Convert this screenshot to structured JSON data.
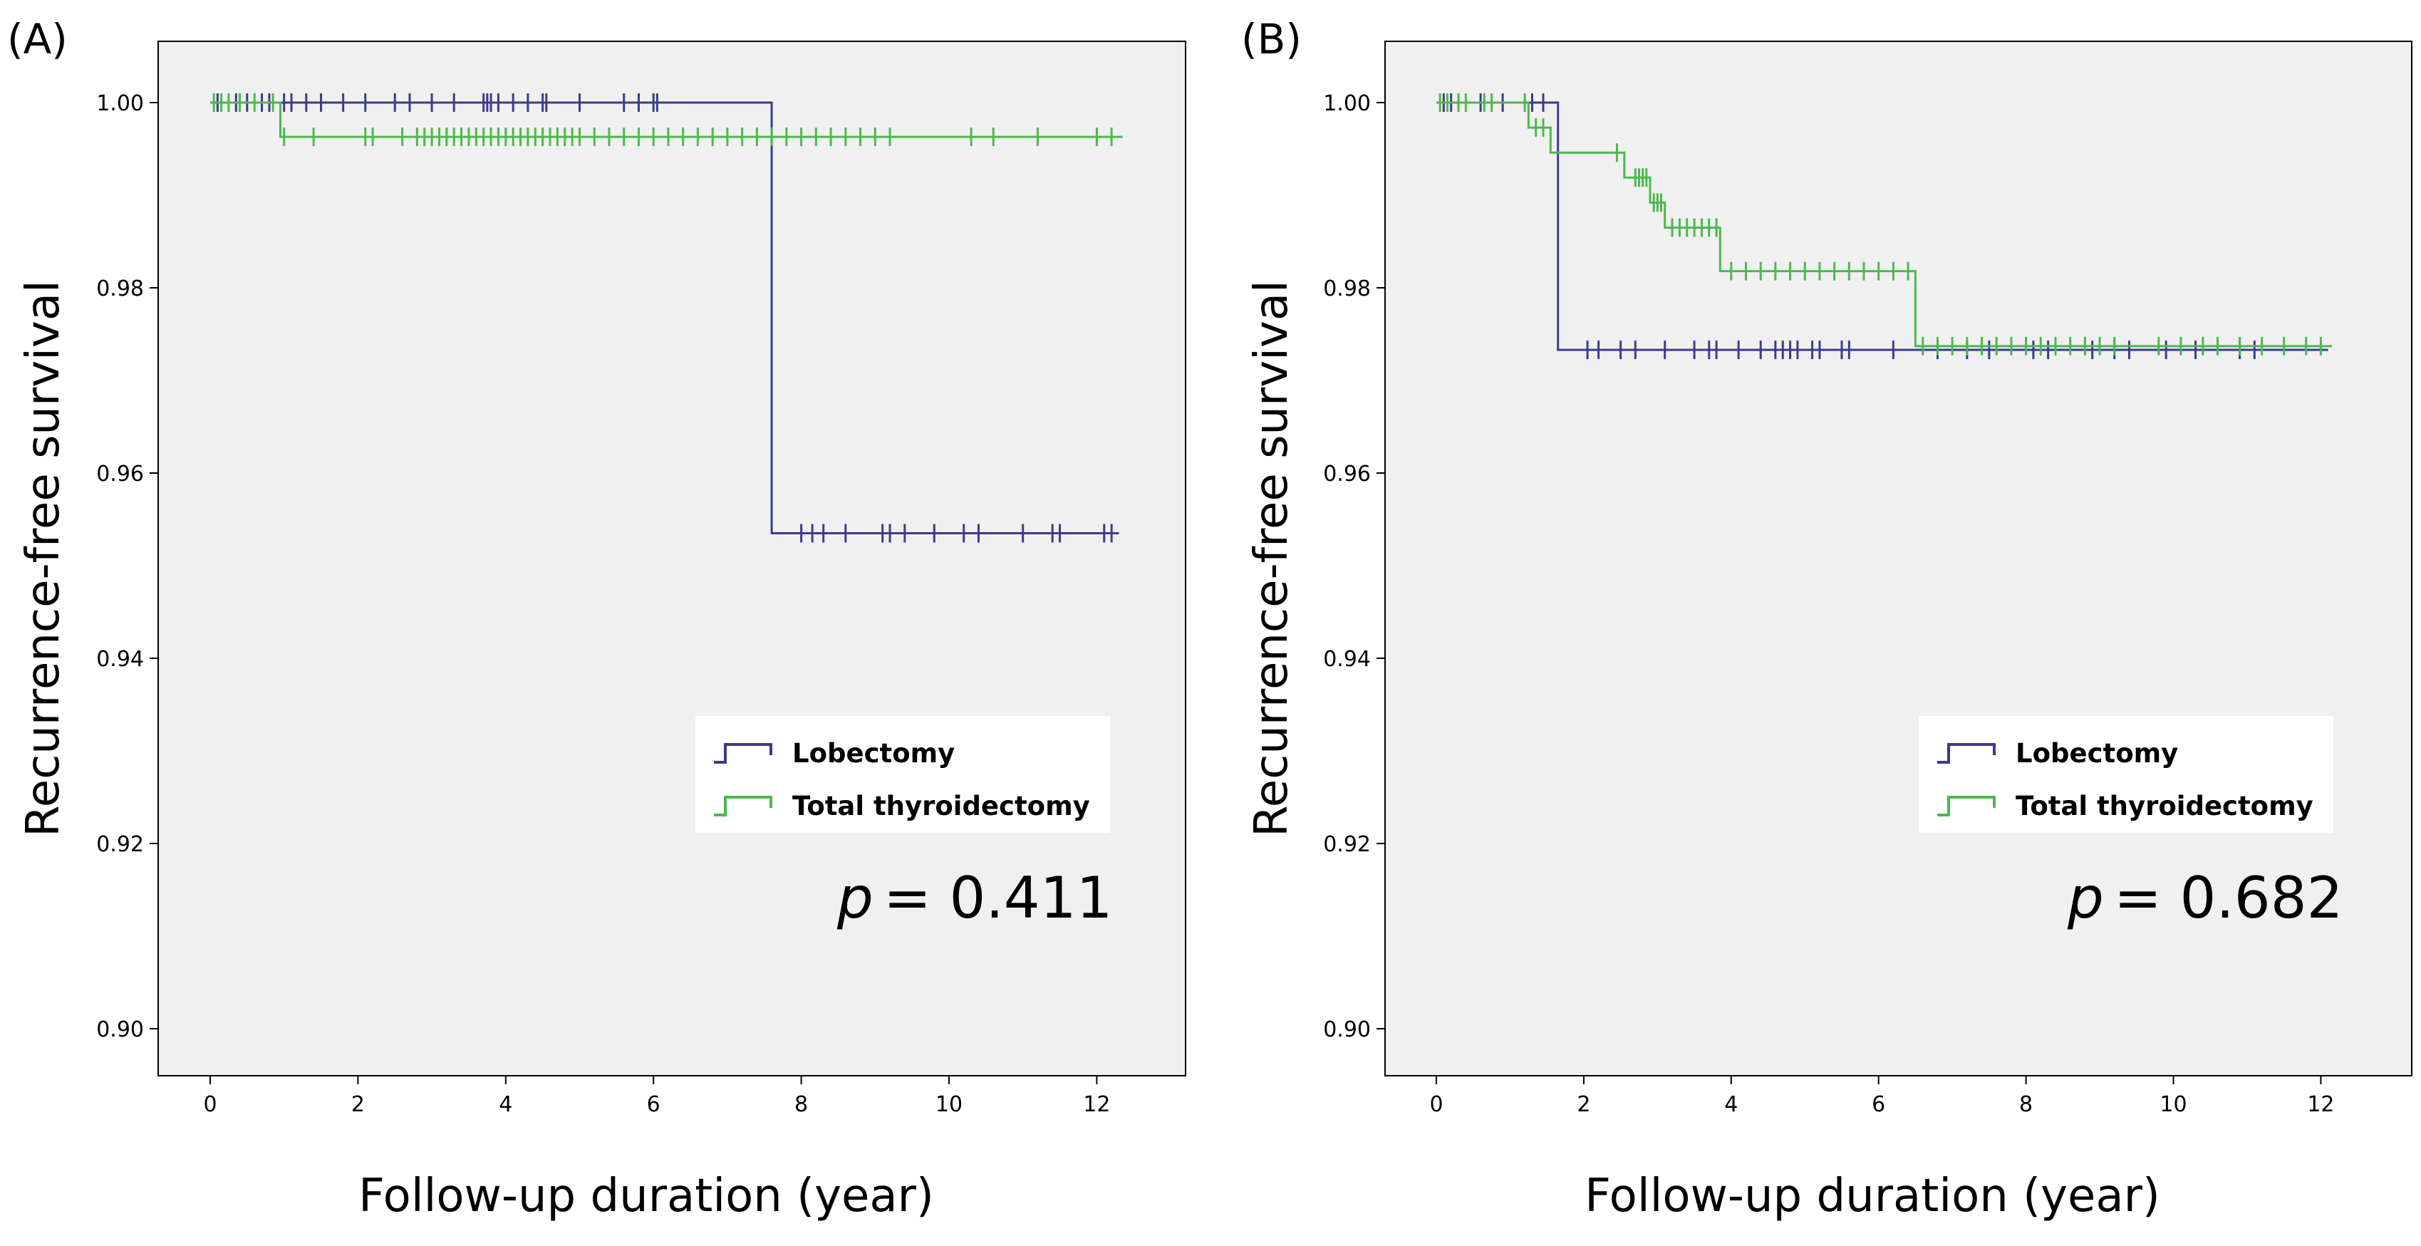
{
  "chart_data": [
    {
      "type": "line",
      "subtype": "kaplan-meier",
      "panel": "(A)",
      "xlabel": "Follow-up duration (year)",
      "ylabel": "Recurrence-free survival",
      "xlim": [
        0,
        12
      ],
      "ylim": [
        0.9,
        1.0
      ],
      "xticks": [
        "0",
        "2",
        "4",
        "6",
        "8",
        "10",
        "12"
      ],
      "yticks": [
        "0.90",
        "0.92",
        "0.94",
        "0.96",
        "0.98",
        "1.00"
      ],
      "legend": [
        "Lobectomy",
        "Total thyroidectomy"
      ],
      "p_value": {
        "symbol": "p",
        "text": "=  0.411"
      },
      "series": [
        {
          "name": "Lobectomy",
          "color": "#3b3b8c",
          "steps": [
            [
              0,
              1.0
            ],
            [
              7.6,
              1.0
            ],
            [
              7.6,
              0.9535
            ],
            [
              12.3,
              0.9535
            ]
          ],
          "censored": [
            0.1,
            0.35,
            0.5,
            0.7,
            0.8,
            1.0,
            1.1,
            1.3,
            1.5,
            1.8,
            2.1,
            2.5,
            2.7,
            3.0,
            3.3,
            3.7,
            3.75,
            3.8,
            3.9,
            4.1,
            4.3,
            4.5,
            4.55,
            5.0,
            5.6,
            5.8,
            6.0,
            6.05,
            8.0,
            8.15,
            8.3,
            8.6,
            9.1,
            9.2,
            9.4,
            9.8,
            10.2,
            10.4,
            11.0,
            11.4,
            11.5,
            12.1,
            12.2
          ]
        },
        {
          "name": "Total thyroidectomy",
          "color": "#4db84d",
          "steps": [
            [
              0,
              1.0
            ],
            [
              0.95,
              1.0
            ],
            [
              0.95,
              0.9963
            ],
            [
              12.35,
              0.9963
            ]
          ],
          "censored": [
            0.05,
            0.15,
            0.25,
            0.4,
            0.6,
            0.85,
            1.0,
            1.4,
            2.1,
            2.2,
            2.6,
            2.8,
            2.9,
            3.0,
            3.1,
            3.2,
            3.3,
            3.4,
            3.5,
            3.6,
            3.7,
            3.8,
            3.9,
            4.0,
            4.1,
            4.2,
            4.3,
            4.4,
            4.5,
            4.6,
            4.7,
            4.8,
            4.9,
            5.0,
            5.2,
            5.4,
            5.6,
            5.8,
            6.0,
            6.2,
            6.4,
            6.6,
            6.8,
            7.0,
            7.2,
            7.4,
            7.6,
            7.8,
            8.0,
            8.2,
            8.4,
            8.6,
            8.8,
            9.0,
            9.2,
            10.3,
            10.6,
            11.2,
            12.0,
            12.2
          ]
        }
      ]
    },
    {
      "type": "line",
      "subtype": "kaplan-meier",
      "panel": "(B)",
      "xlabel": "Follow-up duration (year)",
      "ylabel": "Recurrence-free survival",
      "xlim": [
        0,
        12
      ],
      "ylim": [
        0.9,
        1.0
      ],
      "xticks": [
        "0",
        "2",
        "4",
        "6",
        "8",
        "10",
        "12"
      ],
      "yticks": [
        "0.90",
        "0.92",
        "0.94",
        "0.96",
        "0.98",
        "1.00"
      ],
      "legend": [
        "Lobectomy",
        "Total thyroidectomy"
      ],
      "p_value": {
        "symbol": "p",
        "text": "= 0.682"
      },
      "series": [
        {
          "name": "Lobectomy",
          "color": "#3b3b8c",
          "steps": [
            [
              0,
              1.0
            ],
            [
              1.65,
              1.0
            ],
            [
              1.65,
              0.9733
            ],
            [
              12.1,
              0.9733
            ]
          ],
          "censored": [
            0.1,
            0.2,
            0.6,
            0.9,
            1.3,
            1.45,
            2.05,
            2.2,
            2.5,
            2.7,
            3.1,
            3.5,
            3.7,
            3.8,
            4.1,
            4.4,
            4.6,
            4.7,
            4.8,
            4.9,
            5.1,
            5.2,
            5.5,
            5.6,
            6.2,
            6.8,
            7.2,
            7.5,
            8.1,
            8.3,
            8.9,
            9.2,
            9.4,
            9.9,
            10.3,
            10.9,
            11.1
          ]
        },
        {
          "name": "Total thyroidectomy",
          "color": "#4db84d",
          "steps": [
            [
              0,
              1.0
            ],
            [
              1.25,
              1.0
            ],
            [
              1.25,
              0.9973
            ],
            [
              1.55,
              0.9973
            ],
            [
              1.55,
              0.9946
            ],
            [
              2.55,
              0.9946
            ],
            [
              2.55,
              0.9919
            ],
            [
              2.9,
              0.9919
            ],
            [
              2.9,
              0.9892
            ],
            [
              3.1,
              0.9892
            ],
            [
              3.1,
              0.9865
            ],
            [
              3.85,
              0.9865
            ],
            [
              3.85,
              0.9818
            ],
            [
              6.5,
              0.9818
            ],
            [
              6.5,
              0.9737
            ],
            [
              12.15,
              0.9737
            ]
          ],
          "censored": [
            0.05,
            0.15,
            0.3,
            0.4,
            0.65,
            0.75,
            1.2,
            1.35,
            1.45,
            2.45,
            2.7,
            2.75,
            2.8,
            2.85,
            2.95,
            3.0,
            3.05,
            3.2,
            3.3,
            3.4,
            3.5,
            3.6,
            3.7,
            3.8,
            4.0,
            4.2,
            4.4,
            4.6,
            4.8,
            5.0,
            5.2,
            5.4,
            5.6,
            5.8,
            6.0,
            6.2,
            6.4,
            6.6,
            6.8,
            7.0,
            7.2,
            7.4,
            7.6,
            7.8,
            8.0,
            8.2,
            8.4,
            8.6,
            8.8,
            9.0,
            9.2,
            9.8,
            10.1,
            10.4,
            10.6,
            10.9,
            11.2,
            11.5,
            11.8,
            12.0
          ]
        }
      ]
    }
  ]
}
